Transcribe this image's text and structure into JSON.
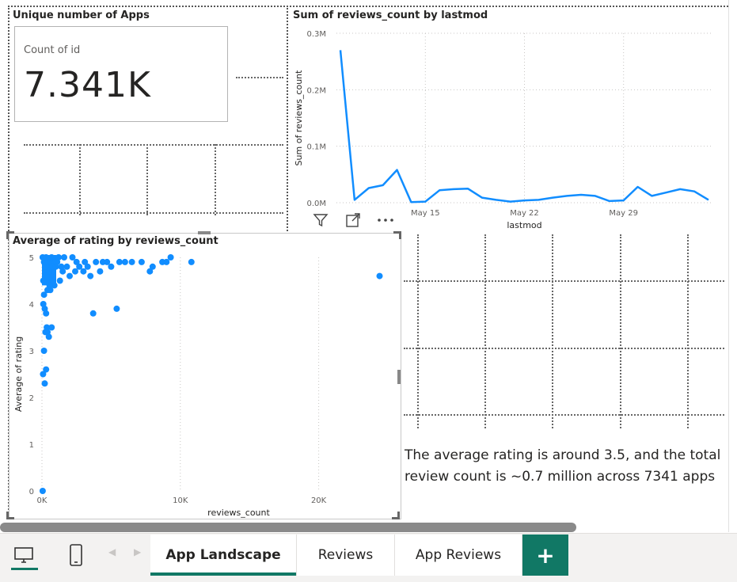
{
  "card_visual": {
    "title": "Unique number of Apps",
    "label": "Count of id",
    "value": "7.341K"
  },
  "line_visual": {
    "title": "Sum of reviews_count by lastmod",
    "toolbar_icons": [
      "filter-icon",
      "focus-mode-icon",
      "more-options-icon"
    ]
  },
  "scatter_visual": {
    "title": "Average of rating by reviews_count"
  },
  "note": {
    "text": "The average rating is around 3.5, and the total review count is ~0.7 million across 7341 apps"
  },
  "tabs": [
    {
      "label": "App Landscape",
      "active": true
    },
    {
      "label": "Reviews",
      "active": false
    },
    {
      "label": "App Reviews",
      "active": false
    }
  ],
  "add_tab_label": "+",
  "view_buttons": [
    "desktop-view-icon",
    "mobile-view-icon"
  ],
  "colors": {
    "series": "#118DFF",
    "accent": "#117865"
  },
  "chart_data": [
    {
      "type": "line",
      "title": "Sum of reviews_count by lastmod",
      "xlabel": "lastmod",
      "ylabel": "Sum of reviews_count",
      "ylim": [
        0,
        300000
      ],
      "y_ticks": [
        "0.0M",
        "0.1M",
        "0.2M",
        "0.3M"
      ],
      "x_ticks": [
        "May 15",
        "May 22",
        "May 29"
      ],
      "grid": true,
      "x": [
        "May 9",
        "May 10",
        "May 11",
        "May 12",
        "May 13",
        "May 14",
        "May 15",
        "May 16",
        "May 17",
        "May 18",
        "May 19",
        "May 20",
        "May 21",
        "May 22",
        "May 23",
        "May 24",
        "May 25",
        "May 26",
        "May 27",
        "May 28",
        "May 29",
        "May 30",
        "May 31",
        "Jun 1",
        "Jun 2",
        "Jun 3",
        "Jun 4"
      ],
      "series": [
        {
          "values": [
            270000,
            5000,
            26000,
            31000,
            58000,
            1000,
            2000,
            22000,
            24000,
            25000,
            9000,
            5000,
            2000,
            4000,
            5000,
            9000,
            12000,
            14000,
            12000,
            3000,
            4000,
            28000,
            12000,
            18000,
            24000,
            20000,
            5000
          ]
        }
      ]
    },
    {
      "type": "scatter",
      "title": "Average of rating by reviews_count",
      "xlabel": "reviews_count",
      "ylabel": "Average of rating",
      "xlim": [
        0,
        25000
      ],
      "ylim": [
        0,
        5
      ],
      "x_ticks": [
        "0K",
        "10K",
        "20K"
      ],
      "y_ticks": [
        "0",
        "1",
        "2",
        "3",
        "4",
        "5"
      ],
      "grid": true,
      "points": [
        [
          50,
          0
        ],
        [
          80,
          2.5
        ],
        [
          200,
          2.3
        ],
        [
          300,
          2.6
        ],
        [
          150,
          3.0
        ],
        [
          250,
          3.4
        ],
        [
          400,
          3.4
        ],
        [
          350,
          3.5
        ],
        [
          700,
          3.5
        ],
        [
          500,
          3.3
        ],
        [
          200,
          3.9
        ],
        [
          100,
          4.0
        ],
        [
          300,
          3.8
        ],
        [
          3700,
          3.8
        ],
        [
          5400,
          3.9
        ],
        [
          150,
          4.2
        ],
        [
          400,
          4.3
        ],
        [
          600,
          4.3
        ],
        [
          900,
          4.4
        ],
        [
          1300,
          4.5
        ],
        [
          2000,
          4.6
        ],
        [
          3000,
          4.7
        ],
        [
          3500,
          4.6
        ],
        [
          4200,
          4.7
        ],
        [
          5000,
          4.8
        ],
        [
          1800,
          4.8
        ],
        [
          2500,
          4.9
        ],
        [
          6500,
          4.9
        ],
        [
          7200,
          4.9
        ],
        [
          8000,
          4.8
        ],
        [
          8700,
          4.9
        ],
        [
          9000,
          4.9
        ],
        [
          9300,
          5.0
        ],
        [
          10800,
          4.9
        ],
        [
          7800,
          4.7
        ],
        [
          24400,
          4.6
        ],
        [
          1100,
          4.9
        ],
        [
          4400,
          4.9
        ],
        [
          5600,
          4.9
        ],
        [
          2700,
          4.8
        ],
        [
          600,
          4.6
        ],
        [
          800,
          4.7
        ],
        [
          1500,
          4.7
        ],
        [
          100,
          4.5
        ],
        [
          250,
          4.8
        ],
        [
          450,
          4.9
        ],
        [
          700,
          5.0
        ],
        [
          950,
          4.9
        ],
        [
          1200,
          5.0
        ],
        [
          1600,
          5.0
        ],
        [
          2200,
          5.0
        ],
        [
          3100,
          4.9
        ],
        [
          3900,
          4.9
        ],
        [
          4700,
          4.9
        ],
        [
          350,
          4.6
        ],
        [
          550,
          4.4
        ],
        [
          50,
          5.0
        ],
        [
          150,
          4.9
        ],
        [
          300,
          5.0
        ],
        [
          500,
          4.7
        ],
        [
          750,
          4.8
        ],
        [
          1000,
          4.8
        ],
        [
          1400,
          4.8
        ],
        [
          2400,
          4.7
        ],
        [
          3300,
          4.8
        ],
        [
          6000,
          4.9
        ]
      ]
    }
  ]
}
